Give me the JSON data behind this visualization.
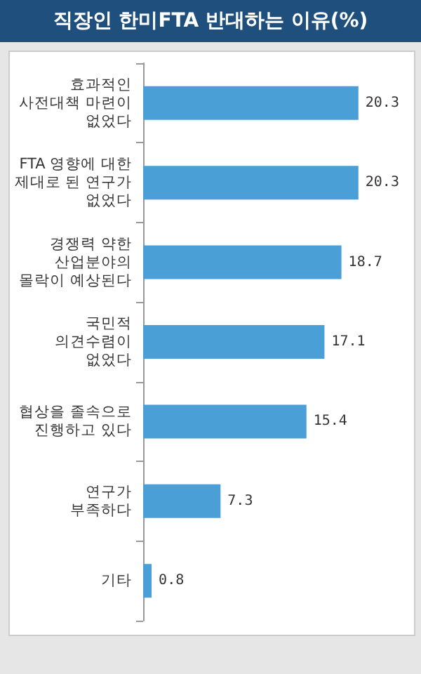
{
  "chart_data": {
    "type": "bar",
    "orientation": "horizontal",
    "title": "직장인 한미FTA 반대하는 이유(%)",
    "categories": [
      "효과적인\n사전대책 마련이\n없었다",
      "FTA 영향에 대한\n제대로 된 연구가\n없었다",
      "경쟁력 약한\n산업분야의\n몰락이 예상된다",
      "국민적\n의견수렴이\n없었다",
      "협상을 졸속으로\n진행하고 있다",
      "연구가\n부족하다",
      "기타"
    ],
    "values": [
      20.3,
      20.3,
      18.7,
      17.1,
      15.4,
      7.3,
      0.8
    ],
    "color": "#4a9fd6",
    "data_labels": true
  }
}
